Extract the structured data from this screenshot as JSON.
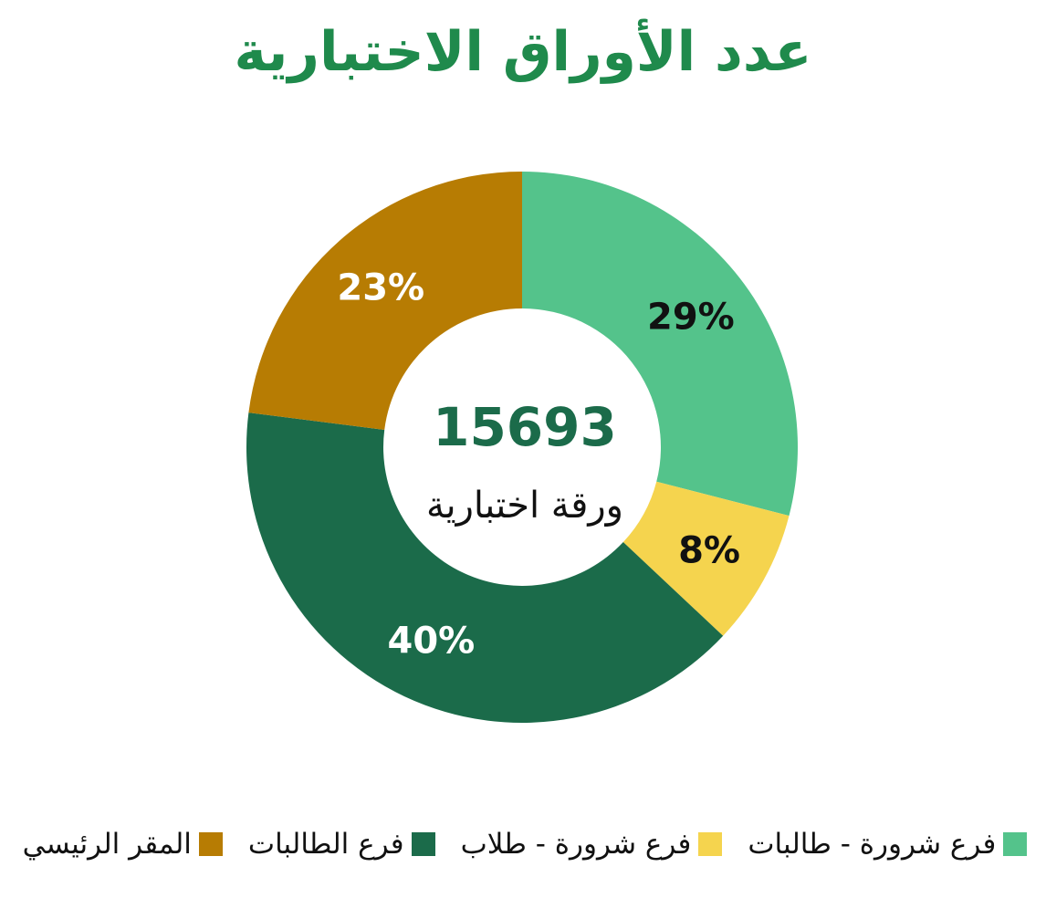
{
  "title": "عدد الأوراق الاختبارية",
  "chart_data": {
    "type": "pie",
    "donut": true,
    "total": "15693",
    "total_sublabel": "ورقة اختبارية",
    "slices": [
      {
        "name": "فرع شرورة - طالبات",
        "value": 29,
        "label": "29%",
        "color": "#54c38b",
        "label_color": "#111111"
      },
      {
        "name": "فرع شرورة - طلاب",
        "value": 8,
        "label": "8%",
        "color": "#f5d44e",
        "label_color": "#111111"
      },
      {
        "name": "فرع الطالبات",
        "value": 40,
        "label": "40%",
        "color": "#1b6b4a",
        "label_color": "#ffffff"
      },
      {
        "name": "المقر الرئيسي",
        "value": 23,
        "label": "23%",
        "color": "#b77c03",
        "label_color": "#ffffff"
      }
    ],
    "legend_position": "bottom",
    "total_color": "#1b6b4a"
  },
  "legend": [
    {
      "label": "المقر الرئيسي",
      "color": "#b77c03"
    },
    {
      "label": "فرع الطالبات",
      "color": "#1b6b4a"
    },
    {
      "label": "فرع شرورة - طلاب",
      "color": "#f5d44e"
    },
    {
      "label": "فرع شرورة - طالبات",
      "color": "#54c38b"
    }
  ]
}
